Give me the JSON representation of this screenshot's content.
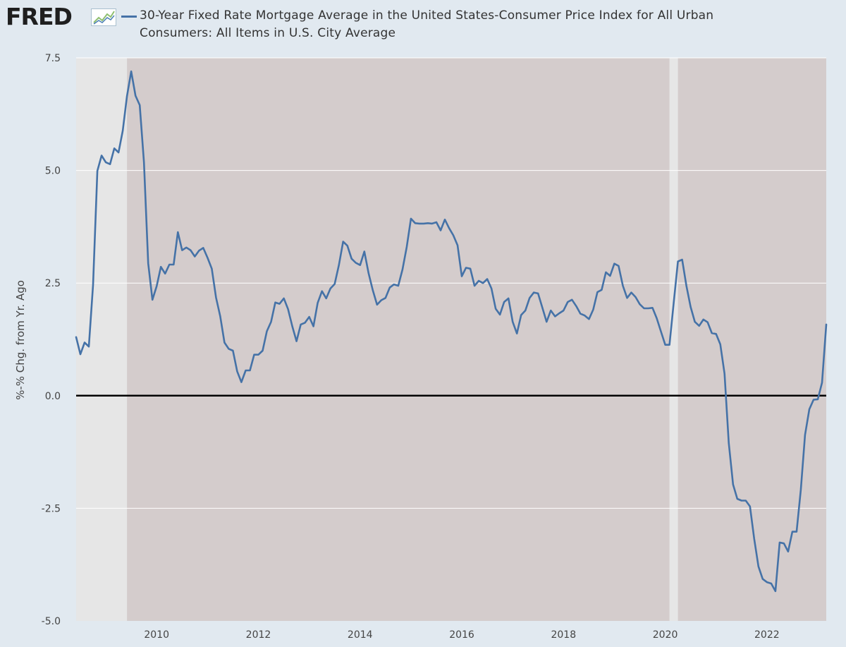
{
  "header": {
    "logo_text": "FRED",
    "logo_icon": "trend-graph-icon",
    "legend": "30-Year Fixed Rate Mortgage Average in the United States-Consumer Price Index for All Urban Consumers: All Items in U.S. City Average"
  },
  "colors": {
    "page_bg": "#e1e9f0",
    "plot_bg": "#e6e6e6",
    "shaded_bg": "#d4cccc",
    "series": "#4572a7",
    "zero_line": "#000000"
  },
  "chart_data": {
    "type": "line",
    "title": "",
    "xlabel": "",
    "ylabel": "%-% Chg. from Yr. Ago",
    "xlim": [
      "2008-06",
      "2023-03"
    ],
    "ylim": [
      -5.0,
      7.5
    ],
    "y_ticks": [
      "7.5",
      "5.0",
      "2.5",
      "0.0",
      "-2.5",
      "-5.0"
    ],
    "x_ticks": [
      "2010",
      "2012",
      "2014",
      "2016",
      "2018",
      "2020",
      "2022"
    ],
    "grid": true,
    "legend_position": "top",
    "shaded_periods": [
      {
        "start": "2009-06",
        "end": "2020-02"
      },
      {
        "start": "2020-04",
        "end": "2023-03"
      }
    ],
    "series": [
      {
        "name": "30-Year Fixed Rate Mortgage Average in the United States-Consumer Price Index for All Urban Consumers: All Items in U.S. City Average",
        "x": [
          "2008-06",
          "2008-07",
          "2008-08",
          "2008-09",
          "2008-10",
          "2008-11",
          "2008-12",
          "2009-01",
          "2009-02",
          "2009-03",
          "2009-04",
          "2009-05",
          "2009-06",
          "2009-07",
          "2009-08",
          "2009-09",
          "2009-10",
          "2009-11",
          "2009-12",
          "2010-01",
          "2010-02",
          "2010-03",
          "2010-04",
          "2010-05",
          "2010-06",
          "2010-07",
          "2010-08",
          "2010-09",
          "2010-10",
          "2010-11",
          "2010-12",
          "2011-01",
          "2011-02",
          "2011-03",
          "2011-04",
          "2011-05",
          "2011-06",
          "2011-07",
          "2011-08",
          "2011-09",
          "2011-10",
          "2011-11",
          "2011-12",
          "2012-01",
          "2012-02",
          "2012-03",
          "2012-04",
          "2012-05",
          "2012-06",
          "2012-07",
          "2012-08",
          "2012-09",
          "2012-10",
          "2012-11",
          "2012-12",
          "2013-01",
          "2013-02",
          "2013-03",
          "2013-04",
          "2013-05",
          "2013-06",
          "2013-07",
          "2013-08",
          "2013-09",
          "2013-10",
          "2013-11",
          "2013-12",
          "2014-01",
          "2014-02",
          "2014-03",
          "2014-04",
          "2014-05",
          "2014-06",
          "2014-07",
          "2014-08",
          "2014-09",
          "2014-10",
          "2014-11",
          "2014-12",
          "2015-01",
          "2015-02",
          "2015-03",
          "2015-04",
          "2015-05",
          "2015-06",
          "2015-07",
          "2015-08",
          "2015-09",
          "2015-10",
          "2015-11",
          "2015-12",
          "2016-01",
          "2016-02",
          "2016-03",
          "2016-04",
          "2016-05",
          "2016-06",
          "2016-07",
          "2016-08",
          "2016-09",
          "2016-10",
          "2016-11",
          "2016-12",
          "2017-01",
          "2017-02",
          "2017-03",
          "2017-04",
          "2017-05",
          "2017-06",
          "2017-07",
          "2017-08",
          "2017-09",
          "2017-10",
          "2017-11",
          "2017-12",
          "2018-01",
          "2018-02",
          "2018-03",
          "2018-04",
          "2018-05",
          "2018-06",
          "2018-07",
          "2018-08",
          "2018-09",
          "2018-10",
          "2018-11",
          "2018-12",
          "2019-01",
          "2019-02",
          "2019-03",
          "2019-04",
          "2019-05",
          "2019-06",
          "2019-07",
          "2019-08",
          "2019-09",
          "2019-10",
          "2019-11",
          "2019-12",
          "2020-01",
          "2020-02",
          "2020-03",
          "2020-04",
          "2020-05",
          "2020-06",
          "2020-07",
          "2020-08",
          "2020-09",
          "2020-10",
          "2020-11",
          "2020-12",
          "2021-01",
          "2021-02",
          "2021-03",
          "2021-04",
          "2021-05",
          "2021-06",
          "2021-07",
          "2021-08",
          "2021-09",
          "2021-10",
          "2021-11",
          "2021-12",
          "2022-01",
          "2022-02",
          "2022-03",
          "2022-04",
          "2022-05",
          "2022-06",
          "2022-07",
          "2022-08",
          "2022-09",
          "2022-10",
          "2022-11",
          "2022-12",
          "2023-01",
          "2023-02",
          "2023-03"
        ],
        "values": [
          1.3,
          0.92,
          1.18,
          1.09,
          2.46,
          4.99,
          5.33,
          5.18,
          5.14,
          5.49,
          5.4,
          5.88,
          6.65,
          7.2,
          6.66,
          6.45,
          5.18,
          2.94,
          2.13,
          2.43,
          2.86,
          2.71,
          2.91,
          2.91,
          3.63,
          3.23,
          3.29,
          3.23,
          3.09,
          3.22,
          3.28,
          3.06,
          2.82,
          2.18,
          1.76,
          1.18,
          1.04,
          1.0,
          0.54,
          0.3,
          0.56,
          0.56,
          0.91,
          0.91,
          1.0,
          1.43,
          1.64,
          2.07,
          2.04,
          2.16,
          1.92,
          1.54,
          1.21,
          1.58,
          1.62,
          1.75,
          1.54,
          2.06,
          2.32,
          2.16,
          2.38,
          2.48,
          2.9,
          3.42,
          3.33,
          3.04,
          2.95,
          2.9,
          3.2,
          2.72,
          2.34,
          2.02,
          2.12,
          2.17,
          2.4,
          2.47,
          2.44,
          2.8,
          3.3,
          3.93,
          3.83,
          3.82,
          3.82,
          3.83,
          3.82,
          3.85,
          3.67,
          3.91,
          3.72,
          3.56,
          3.34,
          2.65,
          2.84,
          2.82,
          2.44,
          2.55,
          2.5,
          2.59,
          2.38,
          1.93,
          1.8,
          2.08,
          2.16,
          1.64,
          1.38,
          1.79,
          1.89,
          2.17,
          2.29,
          2.27,
          1.96,
          1.64,
          1.89,
          1.76,
          1.83,
          1.89,
          2.08,
          2.13,
          1.99,
          1.82,
          1.78,
          1.7,
          1.91,
          2.3,
          2.35,
          2.74,
          2.66,
          2.93,
          2.88,
          2.44,
          2.17,
          2.29,
          2.19,
          2.03,
          1.94,
          1.94,
          1.95,
          1.72,
          1.42,
          1.13,
          1.13,
          2.06,
          2.98,
          3.02,
          2.44,
          1.97,
          1.64,
          1.55,
          1.69,
          1.63,
          1.39,
          1.37,
          1.14,
          0.49,
          -1.05,
          -1.97,
          -2.29,
          -2.33,
          -2.33,
          -2.46,
          -3.18,
          -3.79,
          -4.07,
          -4.14,
          -4.17,
          -4.34,
          -3.26,
          -3.28,
          -3.46,
          -3.02,
          -3.02,
          -2.09,
          -0.87,
          -0.3,
          -0.09,
          -0.08,
          0.29,
          1.58
        ]
      }
    ]
  }
}
